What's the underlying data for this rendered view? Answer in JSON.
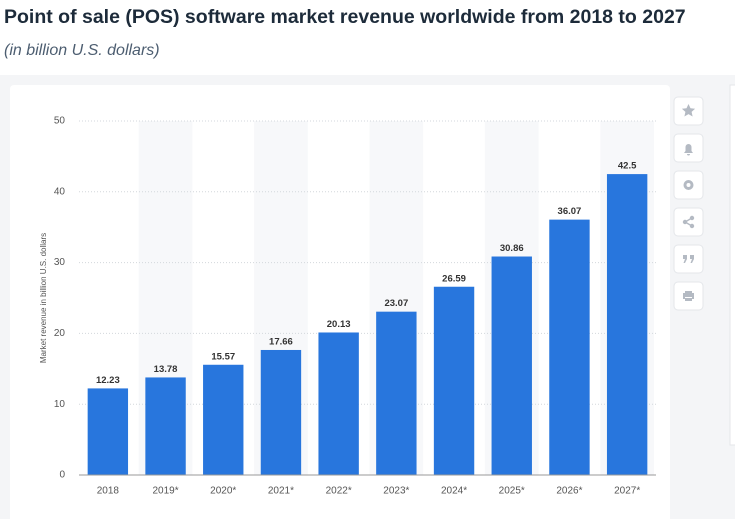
{
  "chart_data": {
    "type": "bar",
    "title": "Point of sale (POS) software market revenue worldwide from 2018 to 2027",
    "subtitle": "(in billion U.S. dollars)",
    "y_label": "Market revenue in billion U.S. dollars",
    "categories": [
      "2018",
      "2019*",
      "2020*",
      "2021*",
      "2022*",
      "2023*",
      "2024*",
      "2025*",
      "2026*",
      "2027*"
    ],
    "values": [
      12.23,
      13.78,
      15.57,
      17.66,
      20.13,
      23.07,
      26.59,
      30.86,
      36.07,
      42.5
    ],
    "color": "#2876dd",
    "ylim": [
      0,
      50
    ],
    "yticks": [
      0,
      10,
      20,
      30,
      40,
      50
    ],
    "grid": true
  }
}
